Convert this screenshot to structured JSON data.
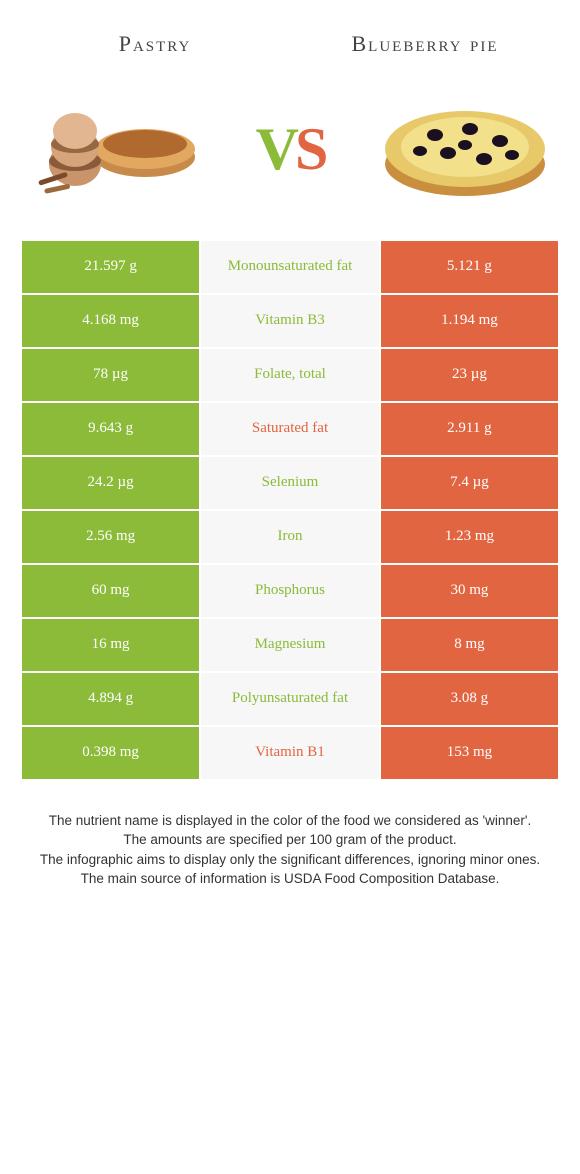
{
  "colors": {
    "left": "#8bbb39",
    "right": "#e16541",
    "mid_bg": "#f7f7f7",
    "text": "#333333"
  },
  "header": {
    "left_title": "Pastry",
    "right_title": "Blueberry pie"
  },
  "vs": {
    "v": "V",
    "s": "S"
  },
  "rows": [
    {
      "left": "21.597 g",
      "label": "Monounsaturated fat",
      "right": "5.121 g",
      "winner": "left"
    },
    {
      "left": "4.168 mg",
      "label": "Vitamin B3",
      "right": "1.194 mg",
      "winner": "left"
    },
    {
      "left": "78 µg",
      "label": "Folate, total",
      "right": "23 µg",
      "winner": "left"
    },
    {
      "left": "9.643 g",
      "label": "Saturated fat",
      "right": "2.911 g",
      "winner": "right"
    },
    {
      "left": "24.2 µg",
      "label": "Selenium",
      "right": "7.4 µg",
      "winner": "left"
    },
    {
      "left": "2.56 mg",
      "label": "Iron",
      "right": "1.23 mg",
      "winner": "left"
    },
    {
      "left": "60 mg",
      "label": "Phosphorus",
      "right": "30 mg",
      "winner": "left"
    },
    {
      "left": "16 mg",
      "label": "Magnesium",
      "right": "8 mg",
      "winner": "left"
    },
    {
      "left": "4.894 g",
      "label": "Polyunsaturated fat",
      "right": "3.08 g",
      "winner": "left"
    },
    {
      "left": "0.398 mg",
      "label": "Vitamin B1",
      "right": "153 mg",
      "winner": "right"
    }
  ],
  "footer": {
    "line1": "The nutrient name is displayed in the color of the food we considered as 'winner'.",
    "line2": "The amounts are specified per 100 gram of the product.",
    "line3": "The infographic aims to display only the significant differences, ignoring minor ones.",
    "line4": "The main source of information is USDA Food Composition Database."
  }
}
